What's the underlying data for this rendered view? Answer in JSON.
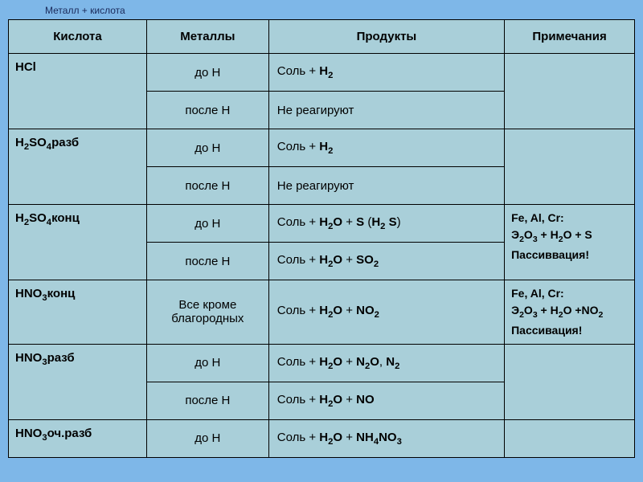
{
  "title": "Металл + кислота",
  "headers": {
    "acid": "Кислота",
    "metals": "Металлы",
    "products": "Продукты",
    "notes": "Примечания"
  },
  "rows": [
    {
      "acid_html": "HCl",
      "sub": [
        {
          "metal": "до Н",
          "product_html": "Соль + <span class='b'>H<sub>2</sub></span>"
        },
        {
          "metal": "после Н",
          "product_html": "Не реагируют"
        }
      ],
      "note_html": ""
    },
    {
      "acid_html": "H<sub>2</sub>SO<sub>4</sub>разб",
      "sub": [
        {
          "metal": "до Н",
          "product_html": "Соль + <span class='b'>H<sub>2</sub></span>"
        },
        {
          "metal": "после Н",
          "product_html": "Не реагируют"
        }
      ],
      "note_html": ""
    },
    {
      "acid_html": "H<sub>2</sub>SO<sub>4</sub>конц",
      "sub": [
        {
          "metal": "до Н",
          "product_html": "Соль + <span class='b'>H<sub>2</sub>O</span> + <span class='b'>S</span> (<span class='b'>H<sub>2</sub> S</span>)"
        },
        {
          "metal": "после Н",
          "product_html": "Соль + <span class='b'>H<sub>2</sub>O</span> + <span class='b'>SO<sub>2</sub></span>"
        }
      ],
      "note_html": "Fe, Al, Cr:<br>Э<sub>2</sub>О<sub>3</sub> + H<sub>2</sub>O + S<br>Пассиввация!"
    },
    {
      "acid_html": "HNO<sub>3</sub>конц",
      "sub": [
        {
          "metal": "Все кроме благородных",
          "product_html": "Соль + <span class='b'>H<sub>2</sub>O</span> + <span class='b'>NO<sub>2</sub></span>",
          "tall": true
        }
      ],
      "note_html": "Fe, Al, Cr:<br>Э<sub>2</sub>О<sub>3</sub> + H<sub>2</sub>O +NO<sub>2</sub><br>Пассивация!"
    },
    {
      "acid_html": "HNO<sub>3</sub>разб",
      "sub": [
        {
          "metal": "до Н",
          "product_html": "Соль + <span class='b'>H<sub>2</sub>O</span> + <span class='b'>N<sub>2</sub>O</span>, <span class='b'>N<sub>2</sub></span>"
        },
        {
          "metal": "после Н",
          "product_html": "Соль + <span class='b'>H<sub>2</sub>O</span> + <span class='b'>NO</span>"
        }
      ],
      "note_html": ""
    },
    {
      "acid_html": "HNO<sub>3</sub>оч.разб",
      "sub": [
        {
          "metal": "до Н",
          "product_html": "Соль + <span class='b'>H<sub>2</sub>O</span> + <span class='b'>NH<sub>4</sub>NO<sub>3</sub></span>"
        }
      ],
      "note_html": ""
    }
  ],
  "colors": {
    "page_bg": "#7eb7e8",
    "cell_bg": "#a9cfd9",
    "border": "#000000",
    "title_color": "#1a2a5a"
  }
}
